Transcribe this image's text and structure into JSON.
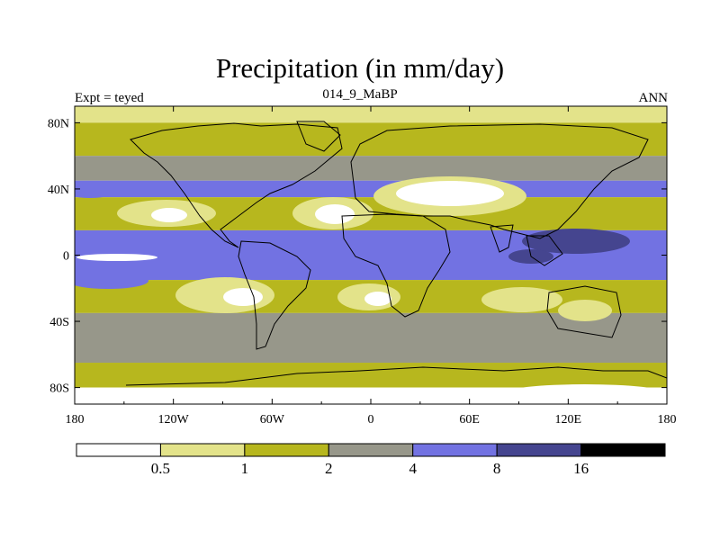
{
  "chart_data": {
    "type": "heatmap",
    "title": "Precipitation (in mm/day)",
    "subtitle_left": "Expt = teyed",
    "subtitle_center": "014_9_MaBP",
    "subtitle_right": "ANN",
    "x_ticks": [
      "180",
      "120W",
      "60W",
      "0",
      "60E",
      "120E",
      "180"
    ],
    "x_tick_values": [
      -180,
      -120,
      -60,
      0,
      60,
      120,
      180
    ],
    "y_ticks": [
      "80N",
      "40N",
      "0",
      "40S",
      "80S"
    ],
    "y_tick_values": [
      80,
      40,
      0,
      -40,
      -80
    ],
    "xlim": [
      -180,
      180
    ],
    "ylim": [
      -90,
      90
    ],
    "units": "mm/day",
    "colorbar": {
      "levels": [
        "0.5",
        "1",
        "2",
        "4",
        "8",
        "16"
      ],
      "colors": [
        "#ffffff",
        "#e3e38a",
        "#b7b71e",
        "#97978a",
        "#7272e2",
        "#45458f",
        "#000000"
      ]
    },
    "zonal_pattern": [
      {
        "lat_from": 90,
        "lat_to": 80,
        "value_band": "0.5-1"
      },
      {
        "lat_from": 80,
        "lat_to": 60,
        "value_band": "1-2"
      },
      {
        "lat_from": 60,
        "lat_to": 45,
        "value_band": "2-4"
      },
      {
        "lat_from": 45,
        "lat_to": 35,
        "value_band": "4-8"
      },
      {
        "lat_from": 35,
        "lat_to": 15,
        "value_band": "1-2"
      },
      {
        "lat_from": 15,
        "lat_to": -15,
        "value_band": "4-8"
      },
      {
        "lat_from": -15,
        "lat_to": -35,
        "value_band": "1-2"
      },
      {
        "lat_from": -35,
        "lat_to": -65,
        "value_band": "2-4"
      },
      {
        "lat_from": -65,
        "lat_to": -80,
        "value_band": "1-2"
      },
      {
        "lat_from": -80,
        "lat_to": -90,
        "value_band": "0-0.5"
      }
    ]
  }
}
